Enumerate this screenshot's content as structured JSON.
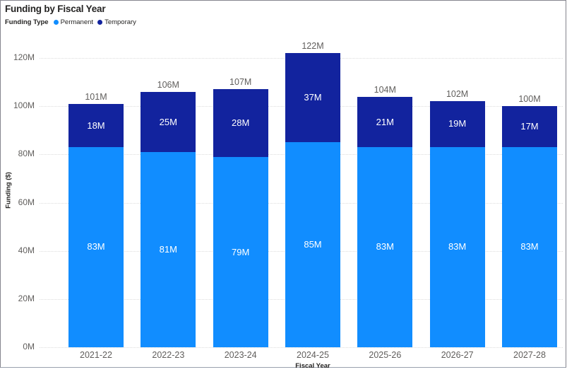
{
  "visual": {
    "title": "Funding by Fiscal Year",
    "legend": {
      "title": "Funding Type",
      "items": [
        {
          "label": "Permanent",
          "color": "#118DFF"
        },
        {
          "label": "Temporary",
          "color": "#12239E"
        }
      ]
    }
  },
  "chart_data": {
    "type": "bar",
    "stacked": true,
    "title": "Funding by Fiscal Year",
    "categories": [
      "2021-22",
      "2022-23",
      "2023-24",
      "2024-25",
      "2025-26",
      "2026-27",
      "2027-28"
    ],
    "series": [
      {
        "name": "Permanent",
        "color": "#118DFF",
        "values": [
          83,
          81,
          79,
          85,
          83,
          83,
          83
        ]
      },
      {
        "name": "Temporary",
        "color": "#12239E",
        "values": [
          18,
          25,
          28,
          37,
          21,
          19,
          17
        ]
      }
    ],
    "totals": [
      101,
      106,
      107,
      122,
      104,
      102,
      100
    ],
    "value_suffix": "M",
    "xlabel": "Fiscal Year",
    "ylabel": "Funding ($)",
    "y_ticks": [
      "0M",
      "20M",
      "40M",
      "60M",
      "80M",
      "100M",
      "120M"
    ],
    "y_tick_values": [
      0,
      20,
      40,
      60,
      80,
      100,
      120
    ],
    "ylim": [
      0,
      130
    ],
    "grid": "horizontal-dotted",
    "legend_position": "top-left",
    "colors": {
      "axis_text": "#605E5C",
      "title_text": "#252423",
      "data_label_inside": "#ffffff",
      "gridline": "#dcdcdc"
    }
  }
}
